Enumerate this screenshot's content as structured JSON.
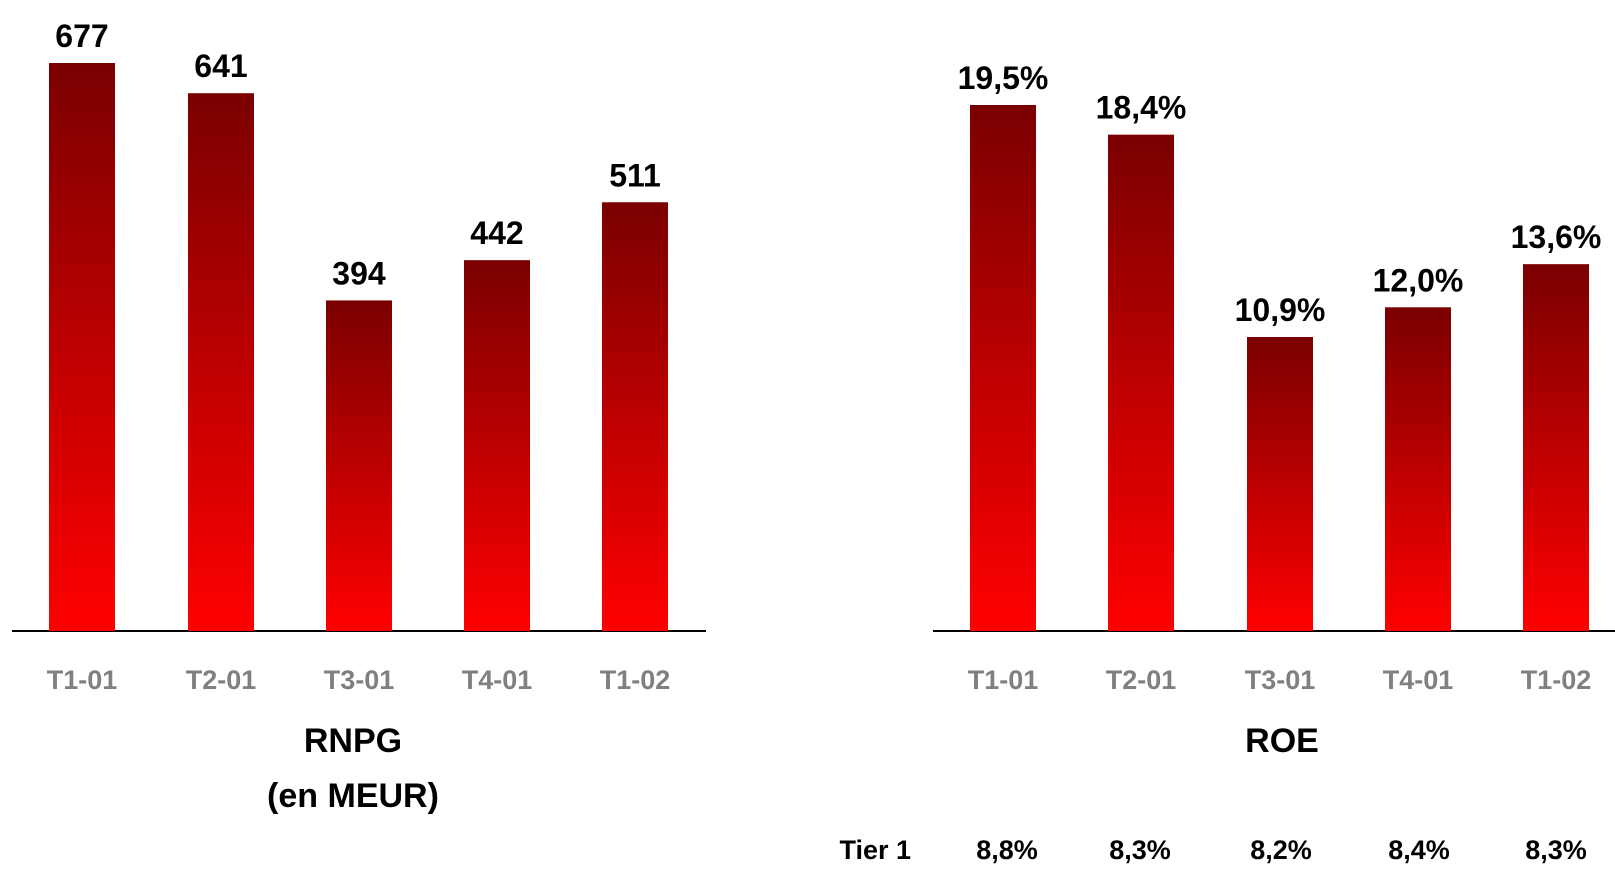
{
  "colors": {
    "bar_top": "#7a0000",
    "bar_bottom": "#ff0000",
    "axis": "#000000",
    "category_text": "#808080",
    "value_text": "#000000"
  },
  "chart_data": [
    {
      "type": "bar",
      "title": "RNPG",
      "subtitle": "(en MEUR)",
      "categories": [
        "T1-01",
        "T2-01",
        "T3-01",
        "T4-01",
        "T1-02"
      ],
      "values": [
        677,
        641,
        394,
        442,
        511
      ],
      "value_labels": [
        "677",
        "641",
        "394",
        "442",
        "511"
      ],
      "ylim": [
        0,
        700
      ],
      "grid": false
    },
    {
      "type": "bar",
      "title": "ROE",
      "categories": [
        "T1-01",
        "T2-01",
        "T3-01",
        "T4-01",
        "T1-02"
      ],
      "values": [
        19.5,
        18.4,
        10.9,
        12.0,
        13.6
      ],
      "value_labels": [
        "19,5%",
        "18,4%",
        "10,9%",
        "12,0%",
        "13,6%"
      ],
      "ylim": [
        0,
        20
      ],
      "grid": false
    }
  ],
  "tier1": {
    "label": "Tier 1",
    "values": [
      "8,8%",
      "8,3%",
      "8,2%",
      "8,4%",
      "8,3%"
    ]
  }
}
